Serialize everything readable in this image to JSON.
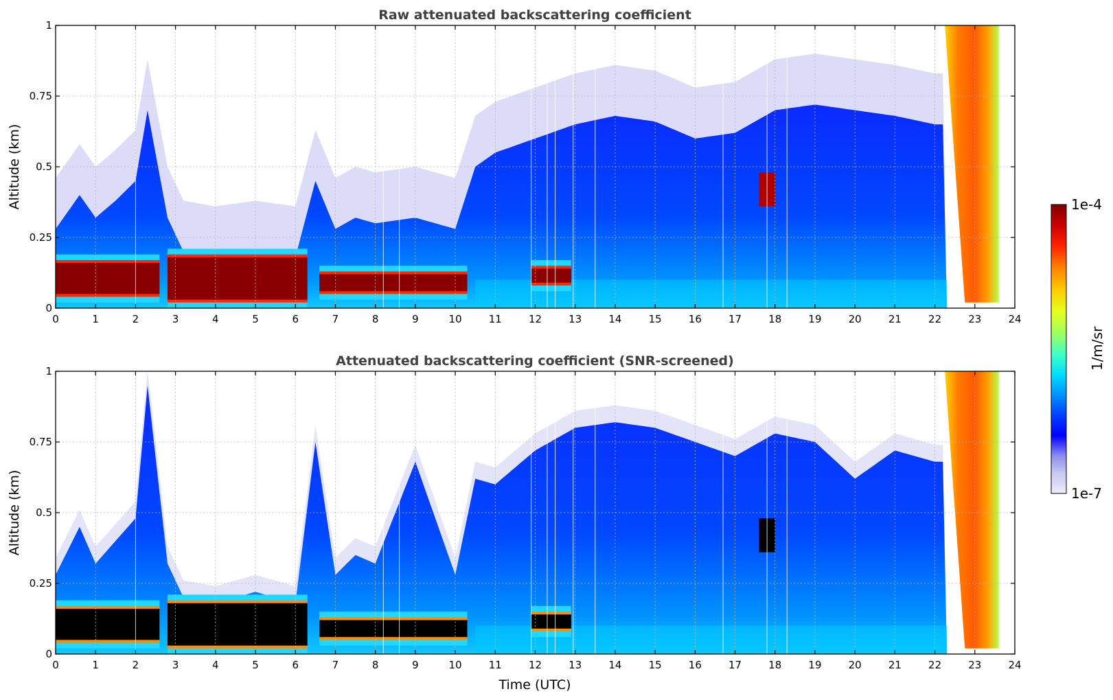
{
  "chart_data": [
    {
      "type": "heatmap",
      "title": "Raw attenuated backscattering coefficient",
      "xlabel": "",
      "ylabel": "Altitude (km)",
      "xlim": [
        0,
        24
      ],
      "ylim": [
        0,
        1
      ],
      "xticks": [
        "0",
        "1",
        "2",
        "3",
        "4",
        "5",
        "6",
        "7",
        "8",
        "9",
        "10",
        "11",
        "12",
        "13",
        "14",
        "15",
        "16",
        "17",
        "18",
        "19",
        "20",
        "21",
        "22",
        "23",
        "24"
      ],
      "yticks": [
        "0",
        "0.25",
        "0.5",
        "0.75",
        "1"
      ],
      "grid": true,
      "boundary_layer_top_km": {
        "time_utc": [
          0,
          0.6,
          1,
          1.5,
          2,
          2.3,
          2.8,
          3.2,
          4,
          5,
          6,
          6.5,
          7,
          7.5,
          8,
          9,
          10,
          10.5,
          11,
          12,
          13,
          14,
          15,
          16,
          17,
          18,
          19,
          20,
          21,
          22
        ],
        "altitude_km": [
          0.28,
          0.4,
          0.32,
          0.38,
          0.45,
          0.7,
          0.32,
          0.2,
          0.18,
          0.2,
          0.18,
          0.45,
          0.28,
          0.32,
          0.3,
          0.32,
          0.28,
          0.5,
          0.55,
          0.6,
          0.65,
          0.68,
          0.66,
          0.6,
          0.62,
          0.7,
          0.72,
          0.7,
          0.68,
          0.65
        ]
      },
      "dense_aerosol_layer": {
        "segments": [
          {
            "start_utc": 0,
            "end_utc": 2.6,
            "top_km": 0.16,
            "bottom_km": 0.04
          },
          {
            "start_utc": 2.8,
            "end_utc": 6.3,
            "top_km": 0.18,
            "bottom_km": 0.02
          },
          {
            "start_utc": 6.6,
            "end_utc": 10.3,
            "top_km": 0.12,
            "bottom_km": 0.05
          },
          {
            "start_utc": 11.9,
            "end_utc": 12.9,
            "top_km": 0.14,
            "bottom_km": 0.08
          }
        ]
      },
      "elevated_plume": {
        "start_utc": 17.6,
        "end_utc": 18.0,
        "bottom_km": 0.36,
        "top_km": 0.48
      },
      "fog_event": {
        "start_utc": 22.3,
        "end_utc": 23.6,
        "bottom_km": 0.0,
        "top_km": 1.0
      }
    },
    {
      "type": "heatmap",
      "title": "Attenuated backscattering coefficient (SNR-screened)",
      "xlabel": "Time (UTC)",
      "ylabel": "Altitude (km)",
      "xlim": [
        0,
        24
      ],
      "ylim": [
        0,
        1
      ],
      "xticks": [
        "0",
        "1",
        "2",
        "3",
        "4",
        "5",
        "6",
        "7",
        "8",
        "9",
        "10",
        "11",
        "12",
        "13",
        "14",
        "15",
        "16",
        "17",
        "18",
        "19",
        "20",
        "21",
        "22",
        "23",
        "24"
      ],
      "yticks": [
        "0",
        "0.25",
        "0.5",
        "0.75",
        "1"
      ],
      "grid": true,
      "saturated_color": "#000000",
      "boundary_layer_top_km": {
        "time_utc": [
          0,
          0.6,
          1,
          1.5,
          2,
          2.3,
          2.8,
          3.2,
          4,
          5,
          6,
          6.5,
          7,
          7.5,
          8,
          9,
          10,
          10.5,
          11,
          12,
          13,
          14,
          15,
          16,
          17,
          18,
          19,
          20,
          21,
          22
        ],
        "altitude_km": [
          0.28,
          0.45,
          0.32,
          0.4,
          0.48,
          0.95,
          0.32,
          0.2,
          0.18,
          0.22,
          0.18,
          0.75,
          0.28,
          0.35,
          0.32,
          0.68,
          0.28,
          0.62,
          0.6,
          0.72,
          0.8,
          0.82,
          0.8,
          0.75,
          0.7,
          0.78,
          0.75,
          0.62,
          0.72,
          0.68
        ]
      }
    }
  ],
  "colorbar": {
    "label": "1/m/sr",
    "max_label": "1e-4",
    "min_label": "1e-7",
    "colormap": [
      "#ececfa",
      "#c8c8f2",
      "#8c8cf0",
      "#0000ff",
      "#0040ff",
      "#0090ff",
      "#00dcff",
      "#3cffc8",
      "#9bff64",
      "#e6ff1e",
      "#ffc800",
      "#ff7800",
      "#ff1e00",
      "#c80000",
      "#800000"
    ]
  }
}
